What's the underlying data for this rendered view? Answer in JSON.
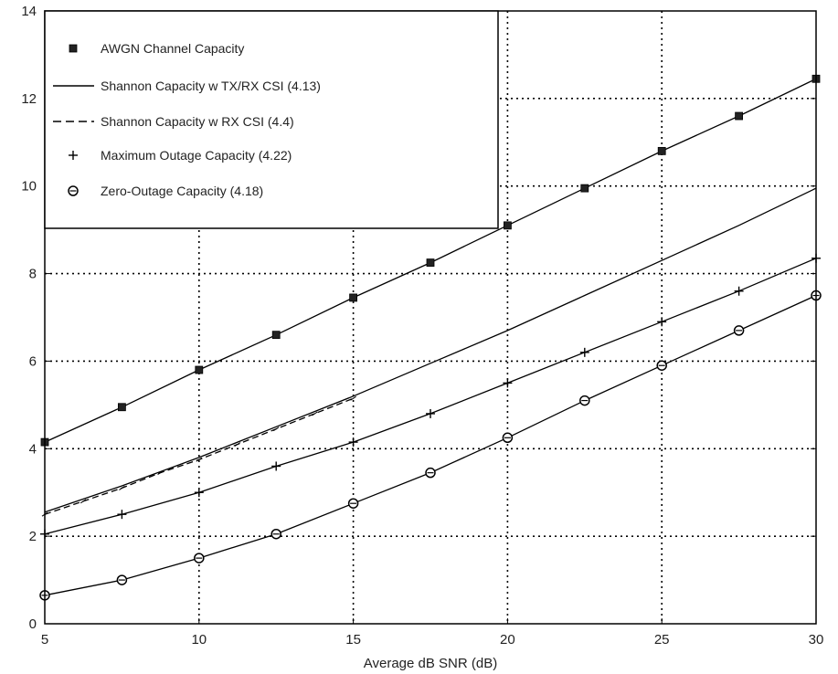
{
  "chart_data": {
    "type": "line",
    "title": "",
    "xlabel": "Average dB SNR (dB)",
    "ylabel": "",
    "xlim": [
      5,
      30
    ],
    "ylim": [
      0,
      14
    ],
    "xticks": [
      5,
      10,
      15,
      20,
      25,
      30
    ],
    "yticks": [
      0,
      2,
      4,
      6,
      8,
      10,
      12,
      14
    ],
    "grid": true,
    "legend_position": "top-left",
    "series": [
      {
        "name": "AWGN Channel Capacity",
        "marker": "filled-square",
        "line": "solid",
        "x": [
          5,
          7.5,
          10,
          12.5,
          15,
          17.5,
          20,
          22.5,
          25,
          27.5,
          30
        ],
        "y": [
          4.15,
          4.95,
          5.8,
          6.6,
          7.45,
          8.25,
          9.1,
          9.95,
          10.8,
          11.6,
          12.45
        ]
      },
      {
        "name": "Shannon Capacity w TX/RX CSI (4.13)",
        "marker": "none",
        "line": "solid",
        "x": [
          5,
          7.5,
          10,
          12.5,
          15,
          17.5,
          20,
          22.5,
          25,
          27.5,
          30
        ],
        "y": [
          2.55,
          3.15,
          3.8,
          4.5,
          5.2,
          5.95,
          6.7,
          7.5,
          8.3,
          9.1,
          9.95
        ]
      },
      {
        "name": "Shannon Capacity w RX CSI (4.4)",
        "marker": "none",
        "line": "dashed",
        "x": [
          5,
          6.25,
          7.5,
          8.75,
          10,
          11.25,
          12.5,
          13.75,
          15
        ],
        "y": [
          2.5,
          2.8,
          3.1,
          3.45,
          3.75,
          4.1,
          4.45,
          4.8,
          5.15
        ]
      },
      {
        "name": "Maximum Outage Capacity (4.22)",
        "marker": "plus",
        "line": "solid",
        "x": [
          5,
          7.5,
          10,
          12.5,
          15,
          17.5,
          20,
          22.5,
          25,
          27.5,
          30
        ],
        "y": [
          2.05,
          2.5,
          3.0,
          3.6,
          4.15,
          4.8,
          5.5,
          6.2,
          6.9,
          7.6,
          8.35
        ]
      },
      {
        "name": "Zero-Outage Capacity (4.18)",
        "marker": "circle-cross",
        "line": "solid",
        "x": [
          5,
          7.5,
          10,
          12.5,
          15,
          17.5,
          20,
          22.5,
          25,
          27.5,
          30
        ],
        "y": [
          0.65,
          1.0,
          1.5,
          2.05,
          2.75,
          3.45,
          4.25,
          5.1,
          5.9,
          6.7,
          7.5
        ]
      }
    ]
  }
}
